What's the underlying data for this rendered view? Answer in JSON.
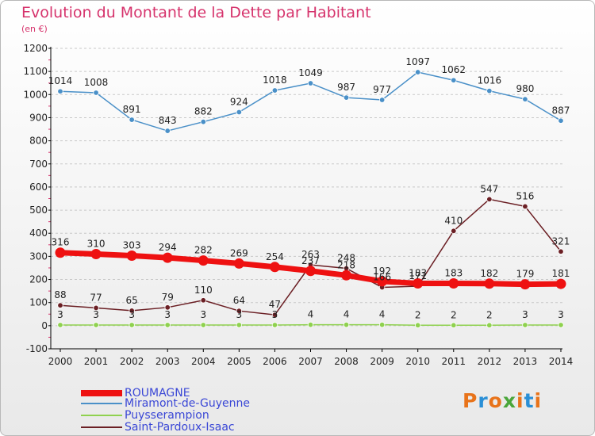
{
  "title": "Evolution du Montant de la Dette par Habitant",
  "unit": "(en €)",
  "logo": "Proxiti",
  "colors": {
    "title": "#d6336c",
    "grid": "#c8c8c8",
    "axis": "#000000",
    "logo_letters": [
      "#e8731a",
      "#2a8fd6",
      "#e8731a",
      "#4aa63a",
      "#e8731a",
      "#2a8fd6",
      "#e8731a"
    ]
  },
  "chart_data": {
    "type": "line",
    "title": "Evolution du Montant de la Dette par Habitant",
    "subtitle": "(en €)",
    "xlabel": "",
    "ylabel": "",
    "x": [
      "2000",
      "2001",
      "2002",
      "2003",
      "2004",
      "2005",
      "2006",
      "2007",
      "2008",
      "2009",
      "2010",
      "2011",
      "2012",
      "2013",
      "2014"
    ],
    "ylim": [
      -100,
      1200
    ],
    "yticks": [
      -100,
      0,
      100,
      200,
      300,
      400,
      500,
      600,
      700,
      800,
      900,
      1000,
      1100,
      1200
    ],
    "grid": true,
    "legend_position": "bottom-left",
    "series": [
      {
        "name": "Miramont-de-Guyenne",
        "color": "#4a90c8",
        "width": 1.5,
        "values": [
          1014,
          1008,
          891,
          843,
          882,
          924,
          1018,
          1049,
          987,
          977,
          1097,
          1062,
          1016,
          980,
          887
        ]
      },
      {
        "name": "Puysserampion",
        "color": "#8fd14f",
        "width": 1.5,
        "values": [
          3,
          3,
          3,
          3,
          3,
          3,
          3,
          4,
          4,
          4,
          2,
          2,
          2,
          3,
          3
        ]
      },
      {
        "name": "Saint-Pardoux-Isaac",
        "color": "#6b1f24",
        "width": 1.5,
        "values": [
          88,
          77,
          65,
          79,
          110,
          64,
          47,
          263,
          248,
          166,
          171,
          410,
          547,
          516,
          321
        ]
      },
      {
        "name": "ROUMAGNE",
        "color": "#ee1111",
        "width": 7,
        "values": [
          316,
          310,
          303,
          294,
          282,
          269,
          254,
          237,
          218,
          192,
          183,
          183,
          182,
          179,
          181
        ]
      }
    ],
    "labels": [
      {
        "series": "Miramont-de-Guyenne",
        "values": [
          "1014",
          "1008",
          "891",
          "843",
          "882",
          "924",
          "1018",
          "1049",
          "987",
          "977",
          "1097",
          "1062",
          "1016",
          "980",
          "887"
        ]
      },
      {
        "series": "Puysserampion",
        "values": [
          "3",
          "3",
          "3",
          "3",
          "3",
          "3",
          "3",
          "4",
          "4",
          "4",
          "2",
          "2",
          "2",
          "3",
          "3"
        ]
      },
      {
        "series": "Saint-Pardoux-Isaac",
        "values": [
          "88",
          "77",
          "65",
          "79",
          "110",
          "64",
          "47",
          "263",
          "248",
          "166",
          "171",
          "410",
          "547",
          "516",
          "321"
        ]
      },
      {
        "series": "ROUMAGNE",
        "values": [
          "316",
          "310",
          "303",
          "294",
          "282",
          "269",
          "254",
          "237",
          "218",
          "192",
          "183",
          "183",
          "182",
          "179",
          "181"
        ]
      }
    ]
  },
  "legend": [
    {
      "label": "ROUMAGNE",
      "color": "#ee1111"
    },
    {
      "label": "Miramont-de-Guyenne",
      "color": "#4a90c8"
    },
    {
      "label": "Puysserampion",
      "color": "#8fd14f"
    },
    {
      "label": "Saint-Pardoux-Isaac",
      "color": "#6b1f24"
    }
  ]
}
